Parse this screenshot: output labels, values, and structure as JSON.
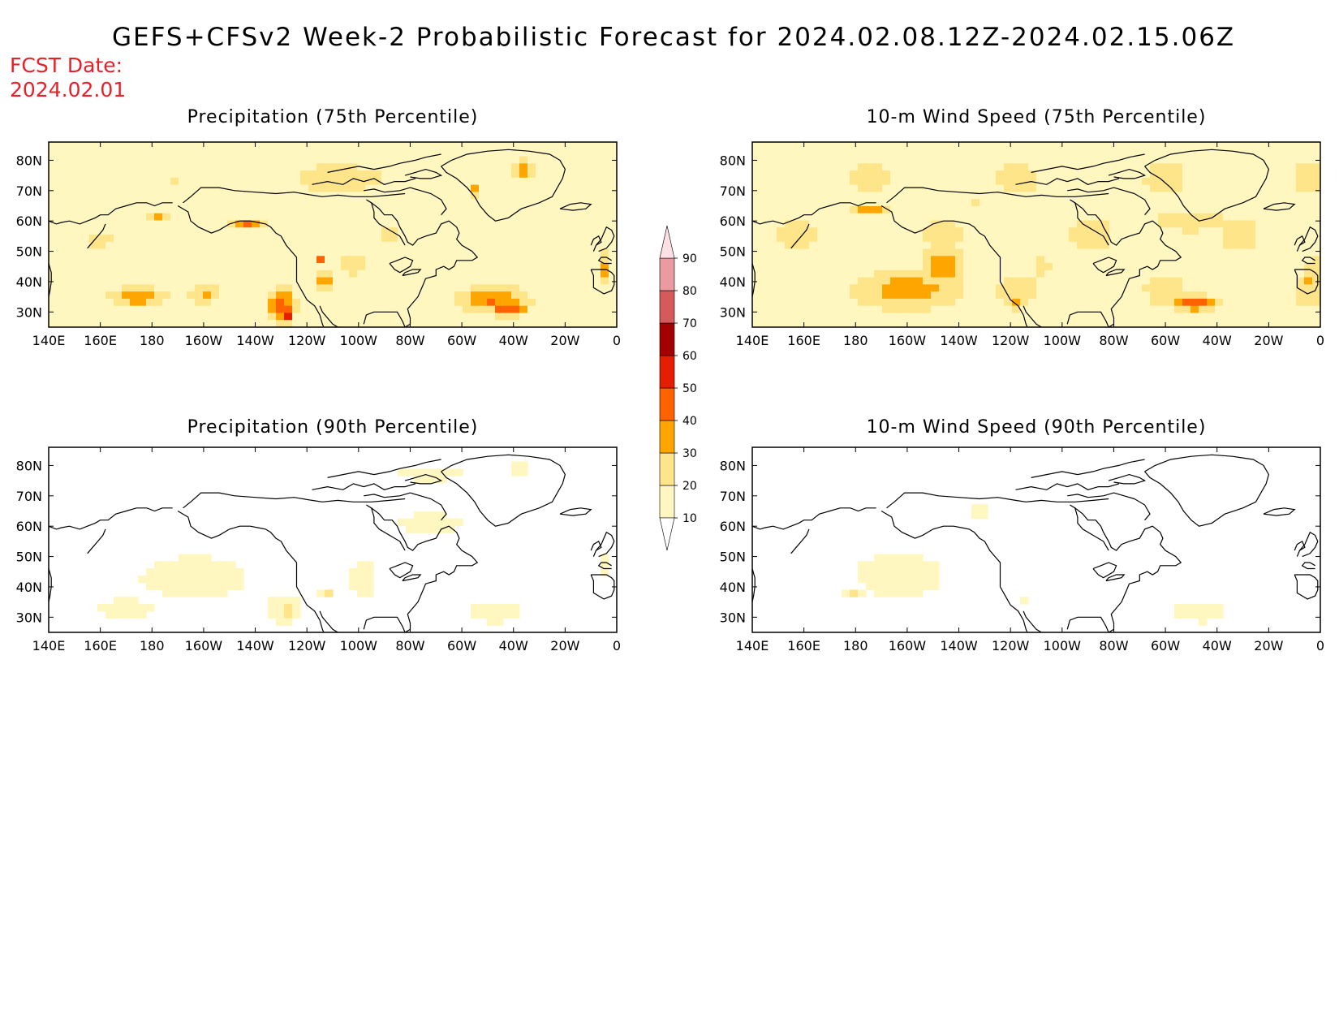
{
  "figure": {
    "title": "GEFS+CFSv2 Week-2 Probabilistic Forecast for 2024.02.08.12Z-2024.02.15.06Z",
    "fcst_label": "FCST Date:",
    "fcst_date": "2024.02.01"
  },
  "panels": [
    {
      "title": "Precipitation (75th Percentile)",
      "variable": "precipitation",
      "percentile": 75
    },
    {
      "title": "10-m Wind Speed (75th Percentile)",
      "variable": "wind10m",
      "percentile": 75
    },
    {
      "title": "Precipitation (90th Percentile)",
      "variable": "precipitation",
      "percentile": 90
    },
    {
      "title": "10-m Wind Speed (90th Percentile)",
      "variable": "wind10m",
      "percentile": 90
    }
  ],
  "axes": {
    "lon_ticks": [
      "140E",
      "160E",
      "180",
      "160W",
      "140W",
      "120W",
      "100W",
      "80W",
      "60W",
      "40W",
      "20W",
      "0"
    ],
    "lat_ticks": [
      "80N",
      "70N",
      "60N",
      "50N",
      "40N",
      "30N"
    ],
    "lon_range": [
      140,
      360
    ],
    "lat_range": [
      25,
      86
    ]
  },
  "colorbar": {
    "levels": [
      "10",
      "20",
      "30",
      "40",
      "50",
      "60",
      "70",
      "80",
      "90"
    ],
    "colors": [
      "#fff7bf",
      "#ffe58a",
      "#ffa500",
      "#ff6200",
      "#e61e00",
      "#a50000",
      "#d75a5a",
      "#eb9aa0",
      "#fde0e4"
    ]
  },
  "colors": {
    "fcst_text": "#e8202a",
    "coastline": "#000000",
    "frame": "#000000"
  }
}
